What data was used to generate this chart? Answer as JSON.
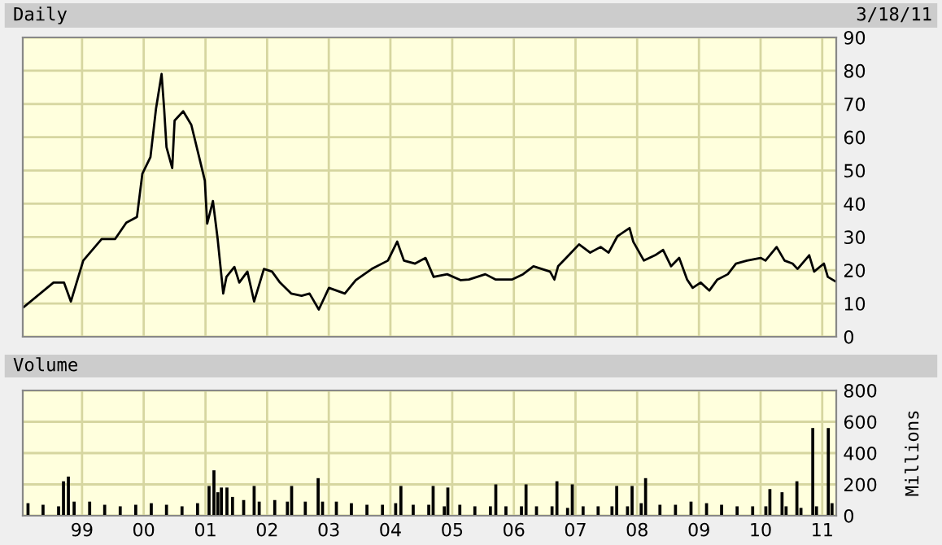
{
  "chart_data": [
    {
      "type": "line",
      "title": "Daily",
      "annotations": [
        "3/18/11"
      ],
      "grid": true,
      "tick_labels": "y",
      "marker": "none",
      "line_style": "solid",
      "xlim": [
        "1998-01-15",
        "2011-03-25"
      ],
      "ylim": [
        0,
        90
      ],
      "yticks": [
        0,
        10,
        20,
        30,
        40,
        50,
        60,
        70,
        80,
        90
      ],
      "xticks": [
        "1999-01-01",
        "2000-01-01",
        "2001-01-01",
        "2002-01-01",
        "2003-01-01",
        "2004-01-01",
        "2005-01-01",
        "2006-01-01",
        "2007-01-01",
        "2008-01-01",
        "2009-01-01",
        "2010-01-01",
        "2011-01-01"
      ],
      "series": [
        {
          "color": "#000000",
          "x": [
            "1998-01-22",
            "1998-07-16",
            "1998-09-16",
            "1998-10-27",
            "1999-01-08",
            "1999-04-27",
            "1999-07-16",
            "1999-09-20",
            "1999-11-22",
            "1999-12-24",
            "2000-02-10",
            "2000-03-14",
            "2000-04-16",
            "2000-05-01",
            "2000-05-15",
            "2000-06-18",
            "2000-07-02",
            "2000-08-22",
            "2000-10-09",
            "2000-11-10",
            "2000-12-28",
            "2001-01-11",
            "2001-02-14",
            "2001-03-14",
            "2001-04-16",
            "2001-05-05",
            "2001-06-21",
            "2001-07-20",
            "2001-09-06",
            "2001-10-16",
            "2001-12-13",
            "2002-01-30",
            "2002-03-18",
            "2002-05-23",
            "2002-07-24",
            "2002-09-09",
            "2002-11-03",
            "2003-01-02",
            "2003-04-06",
            "2003-06-10",
            "2003-09-13",
            "2003-12-17",
            "2004-02-10",
            "2004-03-21",
            "2004-05-26",
            "2004-07-27",
            "2004-09-13",
            "2004-12-02",
            "2005-02-21",
            "2005-04-10",
            "2005-07-16",
            "2005-09-16",
            "2005-12-20",
            "2006-02-24",
            "2006-04-27",
            "2006-08-03",
            "2006-08-29",
            "2006-09-20",
            "2006-11-22",
            "2007-01-22",
            "2007-03-29",
            "2007-05-30",
            "2007-07-16",
            "2007-09-06",
            "2007-11-17",
            "2007-12-09",
            "2008-02-10",
            "2008-04-16",
            "2008-06-03",
            "2008-07-20",
            "2008-09-06",
            "2008-10-23",
            "2008-11-25",
            "2009-01-11",
            "2009-03-04",
            "2009-04-20",
            "2009-06-21",
            "2009-08-08",
            "2009-10-12",
            "2010-01-01",
            "2010-01-30",
            "2010-04-06",
            "2010-05-23",
            "2010-07-09",
            "2010-08-08",
            "2010-10-16",
            "2010-11-14",
            "2011-01-11",
            "2011-02-03",
            "2011-03-18"
          ],
          "values": [
            9,
            16.3,
            16.3,
            10.6,
            22.9,
            29.4,
            29.4,
            34.3,
            36,
            49,
            54,
            68.6,
            79,
            68.6,
            57,
            50.7,
            65,
            67.8,
            63.7,
            57,
            47,
            34,
            40.8,
            29.4,
            13,
            18,
            21,
            16.3,
            19.6,
            10.6,
            20.4,
            19.6,
            16.3,
            13,
            12.3,
            13,
            8.2,
            14.7,
            13,
            17,
            20.4,
            22.9,
            28.6,
            22.9,
            22,
            23.7,
            18,
            18.8,
            17,
            17.2,
            18.8,
            17.2,
            17.2,
            18.8,
            21.2,
            19.6,
            17.2,
            21.2,
            24.5,
            27.8,
            25.3,
            27,
            25.3,
            30.2,
            32.7,
            28.6,
            22.9,
            24.5,
            26.1,
            21.2,
            23.7,
            17.2,
            14.7,
            16.3,
            13.9,
            17.2,
            18.8,
            22,
            22.9,
            23.7,
            22.9,
            27,
            22.9,
            22,
            20.4,
            24.5,
            19.6,
            22,
            18,
            16.7
          ]
        }
      ]
    },
    {
      "type": "bar",
      "title": "Volume",
      "ylabel": "Millions",
      "grid": true,
      "xlim": [
        "1998-01-15",
        "2011-03-25"
      ],
      "ylim": [
        0,
        800
      ],
      "yticks": [
        0,
        200,
        400,
        600,
        800
      ],
      "xticks": [
        {
          "value": "1999-01-01",
          "label": "99"
        },
        {
          "value": "2000-01-01",
          "label": "00"
        },
        {
          "value": "2001-01-01",
          "label": "01"
        },
        {
          "value": "2002-01-01",
          "label": "02"
        },
        {
          "value": "2003-01-01",
          "label": "03"
        },
        {
          "value": "2004-01-01",
          "label": "04"
        },
        {
          "value": "2005-01-01",
          "label": "05"
        },
        {
          "value": "2006-01-01",
          "label": "06"
        },
        {
          "value": "2007-01-01",
          "label": "07"
        },
        {
          "value": "2008-01-01",
          "label": "08"
        },
        {
          "value": "2009-01-01",
          "label": "09"
        },
        {
          "value": "2010-01-01",
          "label": "10"
        },
        {
          "value": "2011-01-01",
          "label": "11"
        }
      ],
      "series": [
        {
          "color": "#000000",
          "x": [
            "1998-02-15",
            "1998-05-15",
            "1998-08-15",
            "1998-09-13",
            "1998-10-12",
            "1998-11-15",
            "1999-02-15",
            "1999-05-15",
            "1999-08-15",
            "1999-11-15",
            "2000-02-15",
            "2000-05-15",
            "2000-08-15",
            "2000-11-15",
            "2001-01-22",
            "2001-02-20",
            "2001-03-15",
            "2001-04-05",
            "2001-05-08",
            "2001-06-10",
            "2001-08-15",
            "2001-10-16",
            "2001-11-15",
            "2002-02-15",
            "2002-05-01",
            "2002-05-26",
            "2002-08-15",
            "2002-10-30",
            "2002-11-25",
            "2003-02-15",
            "2003-05-15",
            "2003-08-15",
            "2003-11-15",
            "2004-02-01",
            "2004-03-03",
            "2004-05-15",
            "2004-08-15",
            "2004-09-10",
            "2004-11-15",
            "2004-12-06",
            "2005-02-15",
            "2005-05-15",
            "2005-08-15",
            "2005-09-16",
            "2005-11-15",
            "2006-02-15",
            "2006-03-14",
            "2006-05-15",
            "2006-08-15",
            "2006-09-13",
            "2006-11-15",
            "2006-12-13",
            "2007-02-15",
            "2007-05-15",
            "2007-08-05",
            "2007-09-02",
            "2007-11-05",
            "2007-12-02",
            "2008-01-25",
            "2008-02-20",
            "2008-05-15",
            "2008-08-15",
            "2008-11-15",
            "2009-02-15",
            "2009-05-15",
            "2009-08-15",
            "2009-11-15",
            "2010-02-01",
            "2010-02-25",
            "2010-05-08",
            "2010-06-01",
            "2010-08-04",
            "2010-08-28",
            "2010-11-06",
            "2010-11-28",
            "2011-02-06",
            "2011-02-28"
          ],
          "values": [
            80,
            70,
            60,
            220,
            250,
            90,
            90,
            70,
            60,
            70,
            80,
            70,
            60,
            80,
            190,
            290,
            150,
            180,
            180,
            120,
            100,
            190,
            90,
            100,
            90,
            190,
            90,
            240,
            90,
            90,
            80,
            70,
            70,
            80,
            190,
            70,
            70,
            190,
            60,
            180,
            70,
            60,
            60,
            200,
            60,
            60,
            200,
            60,
            60,
            220,
            50,
            200,
            60,
            60,
            60,
            190,
            60,
            190,
            80,
            240,
            70,
            70,
            90,
            80,
            70,
            60,
            60,
            60,
            170,
            150,
            60,
            220,
            50,
            560,
            60,
            560,
            80
          ]
        }
      ]
    }
  ]
}
